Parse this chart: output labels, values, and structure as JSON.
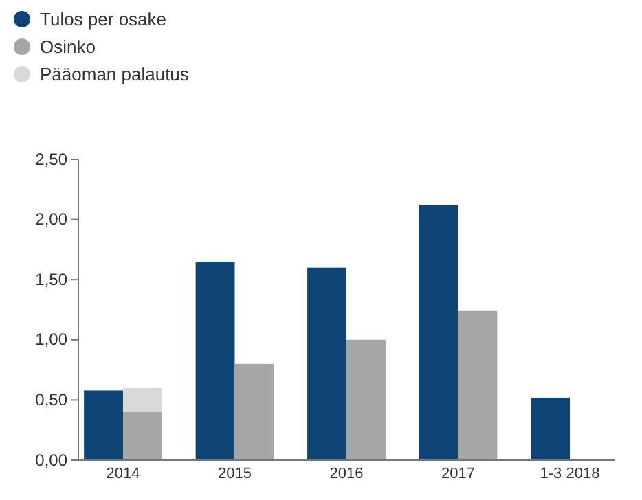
{
  "chart_data": {
    "type": "bar",
    "categories": [
      "2014",
      "2015",
      "2016",
      "2017",
      "1-3 2018"
    ],
    "series": [
      {
        "name": "Tulos per osake",
        "color": "#0e4576",
        "values": [
          0.58,
          1.65,
          1.6,
          2.12,
          0.52
        ]
      },
      {
        "name": "Osinko",
        "color": "#a6a6a6",
        "values": [
          0.4,
          0.8,
          1.0,
          1.24,
          null
        ]
      },
      {
        "name": "Pääoman palautus",
        "color": "#d9d9d9",
        "values": [
          0.2,
          null,
          null,
          null,
          null
        ],
        "base": [
          0.4,
          null,
          null,
          null,
          null
        ]
      }
    ],
    "ylim": [
      0,
      2.5
    ],
    "yticks": [
      {
        "value": 0,
        "label": "0,00"
      },
      {
        "value": 0.5,
        "label": "0,50"
      },
      {
        "value": 1,
        "label": "1,00"
      },
      {
        "value": 1.5,
        "label": "1,50"
      },
      {
        "value": 2,
        "label": "2,00"
      },
      {
        "value": 2.5,
        "label": "2,50"
      }
    ],
    "grid": false,
    "legend": "top left"
  }
}
